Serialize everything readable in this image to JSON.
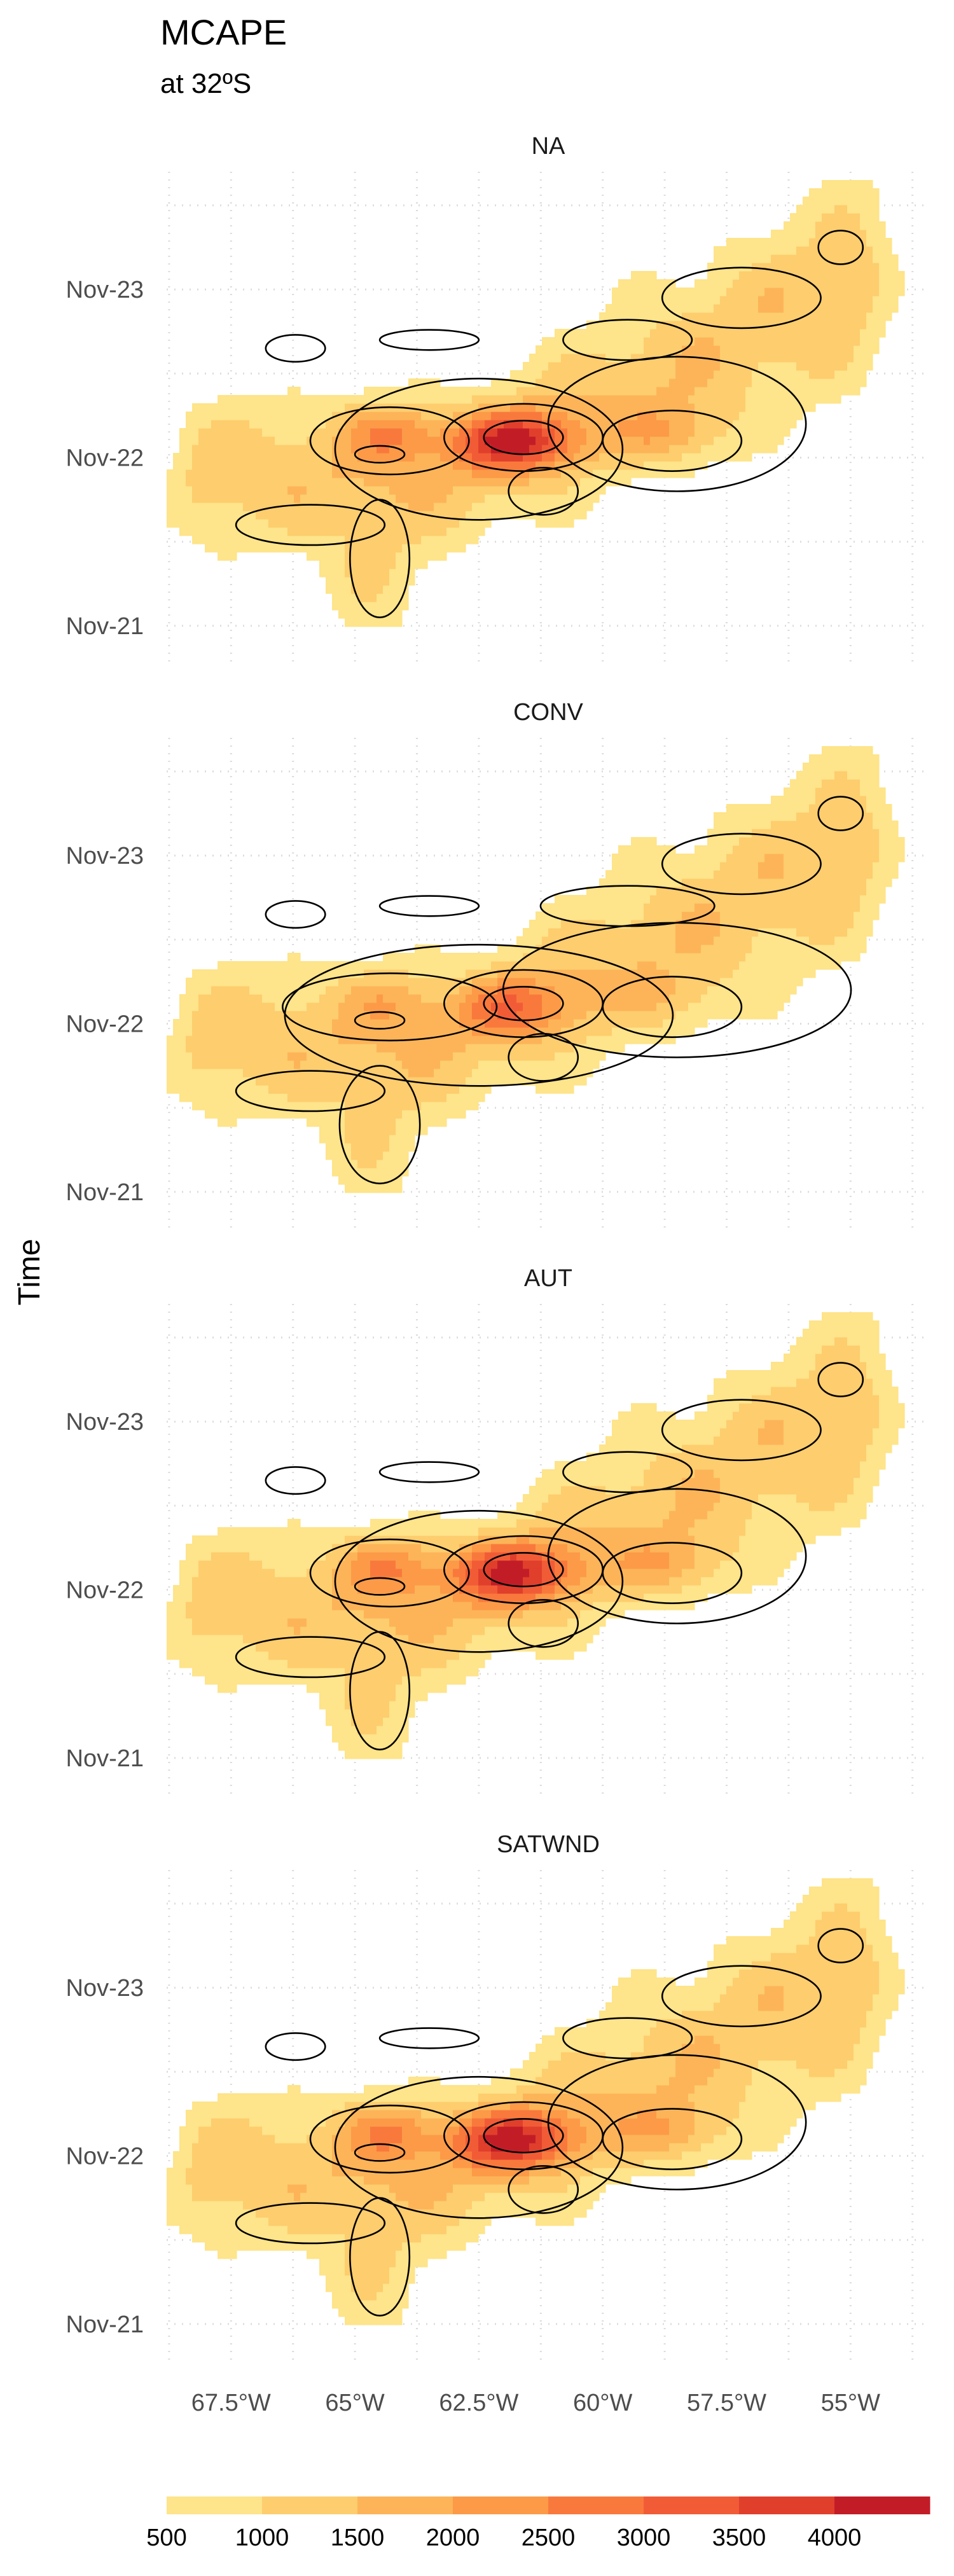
{
  "chart_data": {
    "type": "contour",
    "title": "MCAPE",
    "subtitle": "at 32ºS",
    "ylabel": "Time",
    "xlabel": "",
    "x_ticks": [
      {
        "value": -67.5,
        "label": "67.5°W"
      },
      {
        "value": -65,
        "label": "65°W"
      },
      {
        "value": -62.5,
        "label": "62.5°W"
      },
      {
        "value": -60,
        "label": "60°W"
      },
      {
        "value": -57.5,
        "label": "57.5°W"
      },
      {
        "value": -55,
        "label": "55°W"
      }
    ],
    "y_ticks": [
      {
        "value": 21,
        "label": "Nov-21"
      },
      {
        "value": 22,
        "label": "Nov-22"
      },
      {
        "value": 23,
        "label": "Nov-23"
      }
    ],
    "xlim": [
      -68.8,
      -53.4
    ],
    "ylim": [
      20.75,
      23.7
    ],
    "grid": true,
    "legend": {
      "position": "bottom",
      "breaks": [
        "500",
        "1000",
        "1500",
        "2000",
        "2500",
        "3000",
        "3500",
        "4000"
      ],
      "colors": [
        "#fee48a",
        "#fdcd6e",
        "#fdb458",
        "#fc9a48",
        "#f9793c",
        "#f15c36",
        "#e03f2c",
        "#c21d27"
      ]
    },
    "panels": [
      {
        "label": "NA",
        "intensity": 1.0,
        "contour_strength": 1.0
      },
      {
        "label": "CONV",
        "intensity": 0.55,
        "contour_strength": 1.35
      },
      {
        "label": "AUT",
        "intensity": 0.97,
        "contour_strength": 1.0
      },
      {
        "label": "SATWND",
        "intensity": 0.99,
        "contour_strength": 1.0
      }
    ]
  }
}
